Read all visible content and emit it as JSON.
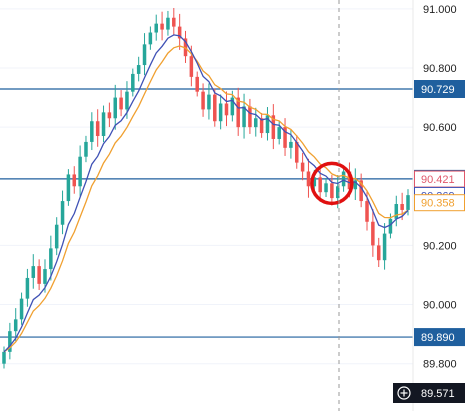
{
  "chart_data": {
    "type": "line",
    "title": "",
    "xlabel": "",
    "ylabel": "",
    "ylim": [
      89.64,
      91.03
    ],
    "y_ticks": [
      {
        "value": 91.0,
        "label": "91.000"
      },
      {
        "value": 90.8,
        "label": "90.800"
      },
      {
        "value": 90.6,
        "label": "90.600"
      },
      {
        "value": 90.2,
        "label": "90.200"
      },
      {
        "value": 90.0,
        "label": "90.000"
      },
      {
        "value": 89.8,
        "label": "89.800"
      }
    ],
    "horizontal_levels": [
      {
        "value": 90.729,
        "label": "90.729",
        "color": "#1f5f9e"
      },
      {
        "value": 90.425,
        "label": "90.425",
        "color": "#1f5f9e"
      },
      {
        "value": 89.89,
        "label": "89.890",
        "color": "#1f5f9e"
      }
    ],
    "price_badges": [
      {
        "value": 90.421,
        "label": "90.421",
        "color": "#e0576a"
      },
      {
        "value": 90.369,
        "label": "90.369",
        "color": "#3f51b5"
      },
      {
        "value": 90.358,
        "label": "90.358",
        "color": "#f0a030"
      }
    ],
    "crosshair_readout": {
      "value": 89.571,
      "label": "89.571"
    },
    "colors": {
      "up": "#26a69a",
      "down": "#ef5350",
      "ma_fast": "#3f51b5",
      "ma_slow": "#f0a030",
      "annotation": "#e01010"
    },
    "candles_close": [
      89.84,
      89.91,
      89.95,
      90.02,
      90.09,
      90.13,
      90.07,
      90.12,
      90.19,
      90.27,
      90.35,
      90.44,
      90.4,
      90.5,
      90.55,
      90.62,
      90.57,
      90.65,
      90.63,
      90.7,
      90.66,
      90.72,
      90.78,
      90.81,
      90.88,
      90.92,
      90.95,
      90.93,
      90.97,
      90.94,
      90.9,
      90.84,
      90.77,
      90.72,
      90.66,
      90.71,
      90.62,
      90.68,
      90.64,
      90.7,
      90.6,
      90.67,
      90.6,
      90.63,
      90.58,
      90.64,
      90.56,
      90.6,
      90.53,
      90.55,
      90.48,
      90.45,
      90.4,
      90.43,
      90.38,
      90.41,
      90.36,
      90.4,
      90.45,
      90.39,
      90.42,
      90.35,
      90.28,
      90.2,
      90.15,
      90.24,
      90.29,
      90.34,
      90.32,
      90.37
    ],
    "annotation": {
      "type": "circle",
      "index": 56,
      "value": 90.41,
      "color": "#e01010"
    }
  }
}
